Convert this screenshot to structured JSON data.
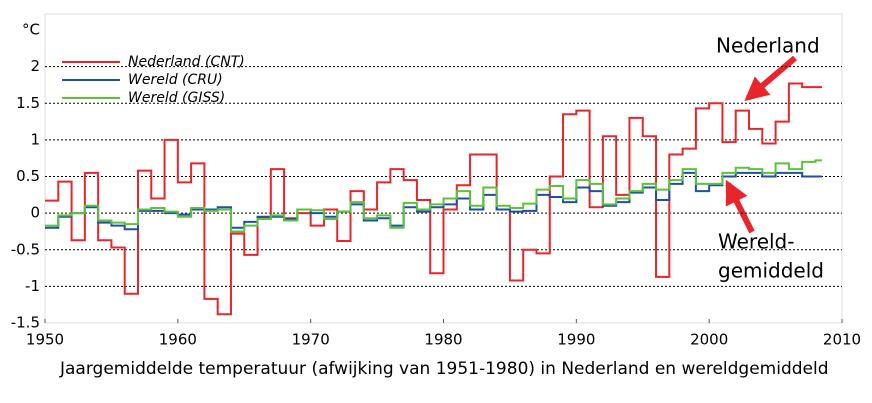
{
  "chart_data": {
    "type": "step",
    "title": "Jaargemiddelde temperatuur (afwijking van 1951-1980) in Nederland en wereldgemiddeld",
    "y_label": "°C",
    "x": [
      1950,
      1951,
      1952,
      1953,
      1954,
      1955,
      1956,
      1957,
      1958,
      1959,
      1960,
      1961,
      1962,
      1963,
      1964,
      1965,
      1966,
      1967,
      1968,
      1969,
      1970,
      1971,
      1972,
      1973,
      1974,
      1975,
      1976,
      1977,
      1978,
      1979,
      1980,
      1981,
      1982,
      1983,
      1984,
      1985,
      1986,
      1987,
      1988,
      1989,
      1990,
      1991,
      1992,
      1993,
      1994,
      1995,
      1996,
      1997,
      1998,
      1999,
      2000,
      2001,
      2002,
      2003,
      2004,
      2005,
      2006,
      2007,
      2008
    ],
    "series": [
      {
        "name": "Nederland (CNT)",
        "color": "#e8252a",
        "values": [
          0.17,
          0.43,
          -0.37,
          0.55,
          -0.37,
          -0.47,
          -1.1,
          0.58,
          0.2,
          1.0,
          0.42,
          0.68,
          -1.17,
          -1.38,
          -0.28,
          -0.57,
          -0.07,
          0.6,
          -0.07,
          0.0,
          -0.17,
          0.05,
          -0.38,
          0.3,
          0.05,
          0.42,
          0.6,
          0.45,
          0.18,
          -0.82,
          0.05,
          0.38,
          0.8,
          0.8,
          0.05,
          -0.92,
          -0.5,
          -0.55,
          0.5,
          1.35,
          1.4,
          0.08,
          1.05,
          0.25,
          1.3,
          1.05,
          -0.87,
          0.8,
          0.88,
          1.43,
          1.5,
          0.97,
          1.4,
          1.15,
          0.95,
          1.25,
          1.77,
          1.72,
          1.72
        ]
      },
      {
        "name": "Wereld (CRU)",
        "color": "#1f4fa8",
        "values": [
          -0.2,
          -0.05,
          0.0,
          0.08,
          -0.13,
          -0.17,
          -0.22,
          0.03,
          0.03,
          0.0,
          -0.02,
          0.05,
          0.05,
          0.08,
          -0.2,
          -0.12,
          -0.05,
          -0.05,
          -0.08,
          0.05,
          0.0,
          -0.05,
          0.02,
          0.12,
          -0.1,
          -0.07,
          -0.17,
          0.08,
          0.02,
          0.08,
          0.12,
          0.2,
          0.05,
          0.25,
          0.05,
          0.02,
          0.03,
          0.25,
          0.22,
          0.15,
          0.35,
          0.3,
          0.1,
          0.15,
          0.28,
          0.35,
          0.18,
          0.4,
          0.55,
          0.3,
          0.38,
          0.5,
          0.55,
          0.55,
          0.5,
          0.55,
          0.55,
          0.5,
          0.5
        ]
      },
      {
        "name": "Wereld (GISS)",
        "color": "#5cc23a",
        "values": [
          -0.17,
          -0.03,
          0.0,
          0.1,
          -0.1,
          -0.13,
          -0.15,
          0.05,
          0.07,
          0.02,
          -0.05,
          0.07,
          0.03,
          0.05,
          -0.25,
          -0.17,
          -0.08,
          -0.03,
          -0.1,
          0.05,
          0.04,
          -0.08,
          0.02,
          0.15,
          -0.07,
          -0.03,
          -0.2,
          0.14,
          0.05,
          0.12,
          0.2,
          0.3,
          0.1,
          0.35,
          0.1,
          0.07,
          0.13,
          0.32,
          0.37,
          0.2,
          0.45,
          0.4,
          0.12,
          0.2,
          0.3,
          0.4,
          0.32,
          0.45,
          0.6,
          0.4,
          0.4,
          0.55,
          0.62,
          0.6,
          0.55,
          0.68,
          0.6,
          0.7,
          0.72
        ]
      }
    ],
    "xlim": [
      1950,
      2010
    ],
    "xticks": [
      1950,
      1960,
      1970,
      1980,
      1990,
      2000,
      2010
    ],
    "ylim": [
      -1.5,
      2.5
    ],
    "yticks": [
      -1.5,
      -1,
      -0.5,
      0,
      0.5,
      1,
      1.5,
      2
    ],
    "grid": true,
    "legend": "upper left",
    "annotations": [
      {
        "lines": [
          "Nederland"
        ]
      },
      {
        "lines": [
          "Wereld-",
          "gemiddeld"
        ]
      }
    ]
  }
}
